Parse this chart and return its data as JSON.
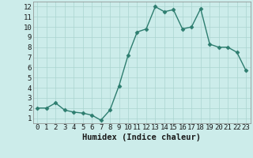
{
  "x": [
    0,
    1,
    2,
    3,
    4,
    5,
    6,
    7,
    8,
    9,
    10,
    11,
    12,
    13,
    14,
    15,
    16,
    17,
    18,
    19,
    20,
    21,
    22,
    23
  ],
  "y": [
    2.0,
    2.0,
    2.5,
    1.8,
    1.6,
    1.5,
    1.3,
    0.8,
    1.8,
    4.2,
    7.2,
    9.5,
    9.8,
    12.0,
    11.5,
    11.7,
    9.8,
    10.0,
    11.8,
    8.3,
    8.0,
    8.0,
    7.5,
    5.7
  ],
  "line_color": "#2d7d6f",
  "marker_color": "#2d7d6f",
  "bg_color": "#ccecea",
  "grid_color": "#aad4d0",
  "xlabel": "Humidex (Indice chaleur)",
  "xlim": [
    -0.5,
    23.5
  ],
  "ylim": [
    0.5,
    12.5
  ],
  "yticks": [
    1,
    2,
    3,
    4,
    5,
    6,
    7,
    8,
    9,
    10,
    11,
    12
  ],
  "xticks": [
    0,
    1,
    2,
    3,
    4,
    5,
    6,
    7,
    8,
    9,
    10,
    11,
    12,
    13,
    14,
    15,
    16,
    17,
    18,
    19,
    20,
    21,
    22,
    23
  ],
  "xlabel_fontsize": 7.5,
  "tick_fontsize": 6.5,
  "line_width": 1.0,
  "marker_size": 2.5
}
